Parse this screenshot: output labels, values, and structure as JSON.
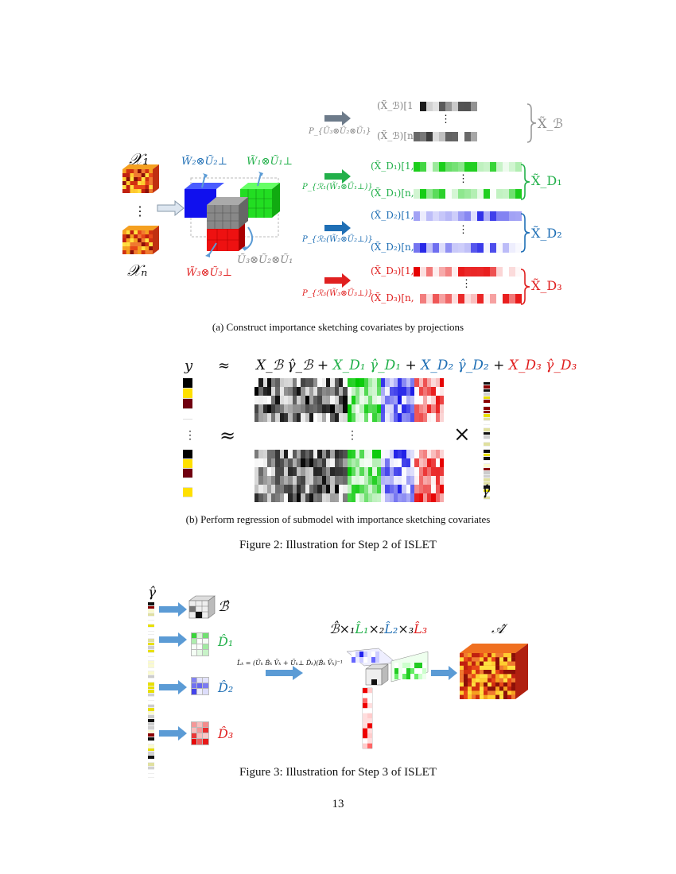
{
  "figure2": {
    "panel_a": {
      "caption": "(a) Construct importance sketching covariates by projections",
      "x_first": "𝒳₁",
      "x_last": "𝒳ₙ",
      "dots": "⋮",
      "cube_labels": {
        "blue": "W̃₂⊗Ũ₂⊥",
        "green": "W̃₁⊗Ũ₁⊥",
        "red": "W̃₃⊗Ũ₃⊥",
        "gray": "Ũ₃⊗Ũ₂⊗Ũ₁"
      },
      "projections": {
        "gray": "P_{Ũ₃⊗Ũ₂⊗Ũ₁}",
        "green": "P_{ℛ₁(W̃₁⊗Ũ₁⊥)}",
        "blue": "P_{ℛ₂(W̃₂⊗Ũ₂⊥)}",
        "red": "P_{ℛ₃(W̃₃⊗Ũ₃⊥)}"
      },
      "rows": {
        "b_first": "(X̃_ℬ)[1,:]",
        "b_last": "(X̃_ℬ)[n,:]",
        "d1_first": "(X̃_D₁)[1,:]",
        "d1_last": "(X̃_D₁)[n,:]",
        "d2_first": "(X̃_D₂)[1,:]",
        "d2_last": "(X̃_D₂)[n,:]",
        "d3_first": "(X̃_D₃)[1,:]",
        "d3_last": "(X̃_D₃)[n,:]"
      },
      "brace_labels": {
        "b": "X̃_ℬ",
        "d1": "X̃_D₁",
        "d2": "X̃_D₂",
        "d3": "X̃_D₃"
      }
    },
    "panel_b": {
      "caption": "(b) Perform regression of submodel with importance sketching covariates",
      "y": "y",
      "approx": "≈",
      "eq_b": "X_ℬ γ̂_ℬ",
      "plus": "+",
      "eq_d1": "X_D₁ γ̂_D₁",
      "eq_d2": "X_D₂ γ̂_D₂",
      "eq_d3": "X_D₃ γ̂_D₃",
      "times": "×",
      "gamma": "γ̂",
      "dots": "⋮"
    },
    "caption": "Figure 2: Illustration for Step 2 of ISLET"
  },
  "figure3": {
    "gamma": "γ̂",
    "b_hat": "ℬ̂",
    "d1_hat": "D̂₁",
    "d2_hat": "D̂₂",
    "d3_hat": "D̂₃",
    "formula": "L̂ₖ = (Ũₖ B̂ₖ Ṽₖ + Ũₖ⊥ D̂ₖ)(B̂ₖ Ṽₖ)⁻¹",
    "product_b": "ℬ̂×₁",
    "product_l1": "L̂₁",
    "product_x2": "×₂",
    "product_l2": "L̂₂",
    "product_x3": "×₃",
    "product_l3": "L̂₃",
    "a_hat": "𝒜̂",
    "caption": "Figure 3: Illustration for Step 3 of ISLET"
  },
  "page_number": "13",
  "colors": {
    "green": "#22b04a",
    "blue": "#1f6fb5",
    "red": "#e02020",
    "gray": "#888888",
    "arrow_blue": "#5b9bd5",
    "arrow_gray": "#6d7b8a"
  }
}
